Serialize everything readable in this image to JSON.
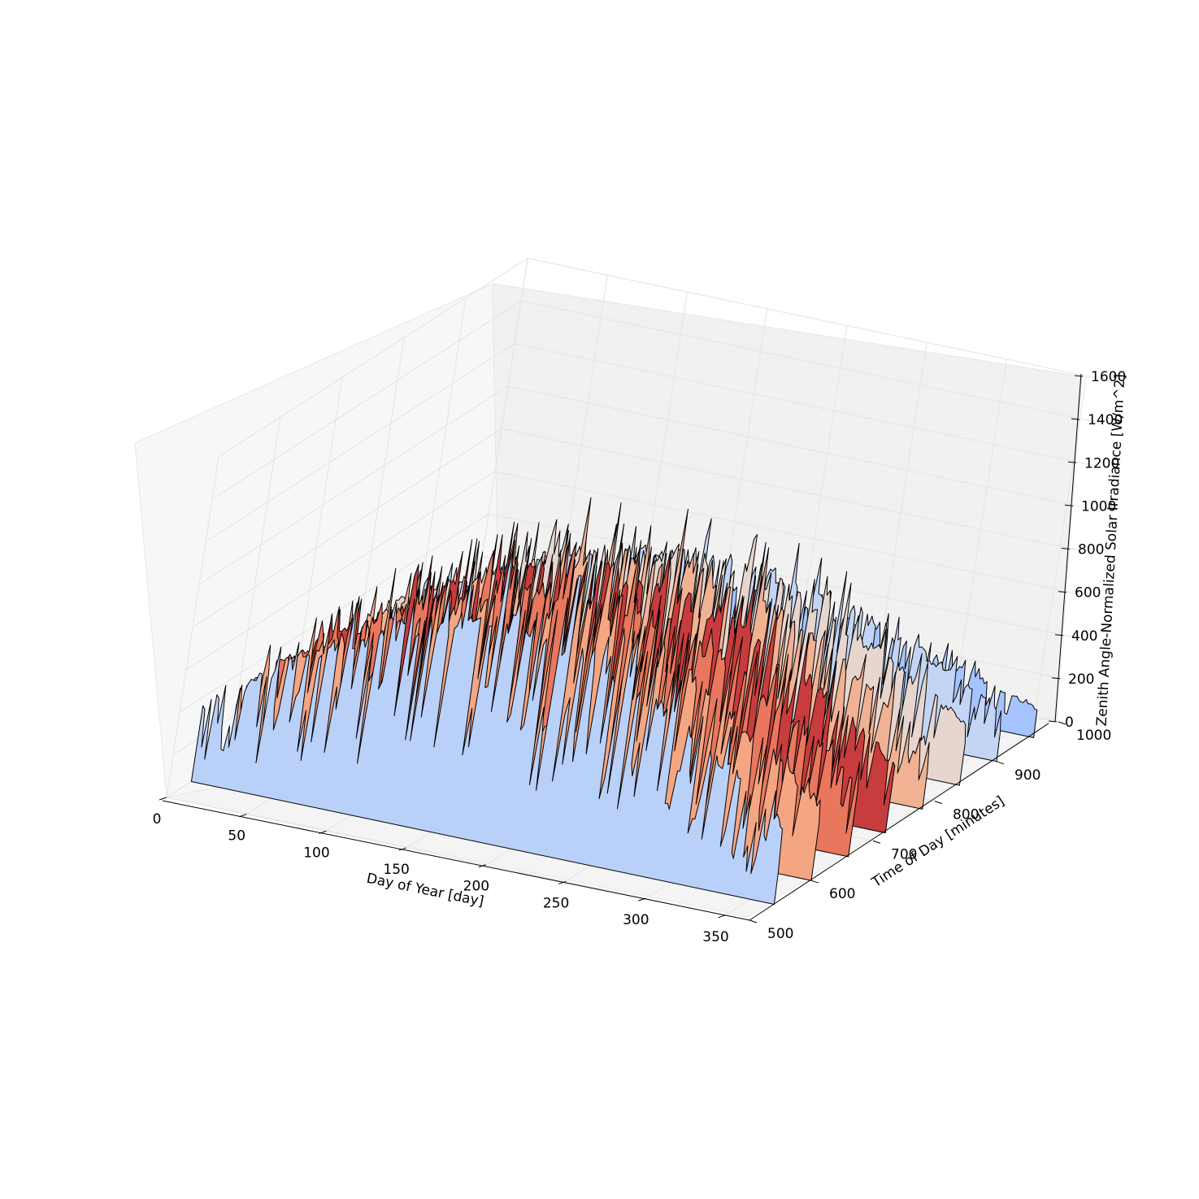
{
  "chart_data": {
    "type": "surface3d",
    "title": "",
    "xlabel": "Day of Year [day]",
    "ylabel": "Time of Day [minutes]",
    "zlabel": "Zenith Angle-Normalized Solar Irradiance [W/m^2]",
    "xlim": [
      0,
      365
    ],
    "ylim": [
      500,
      1000
    ],
    "zlim": [
      0,
      1600
    ],
    "xticks": [
      "0",
      "50",
      "100",
      "150",
      "200",
      "250",
      "300",
      "350"
    ],
    "yticks": [
      "500",
      "600",
      "700",
      "800",
      "900",
      "1000"
    ],
    "zticks": [
      "0",
      "200",
      "400",
      "600",
      "800",
      "1000",
      "1200",
      "1400",
      "1600"
    ],
    "colormap": "coolwarm",
    "grid": true,
    "rows_time_of_day": [
      540,
      600,
      660,
      720,
      780,
      840,
      900,
      960
    ],
    "profile_peak_irradiance": [
      1050,
      1020,
      980,
      950,
      900,
      820,
      680,
      400
    ],
    "row_colors": [
      "#b9d0f9",
      "#f4a582",
      "#e8775e",
      "#c73c3d",
      "#f1b193",
      "#e6d6cf",
      "#c3d5f4",
      "#a5c3fe"
    ]
  }
}
